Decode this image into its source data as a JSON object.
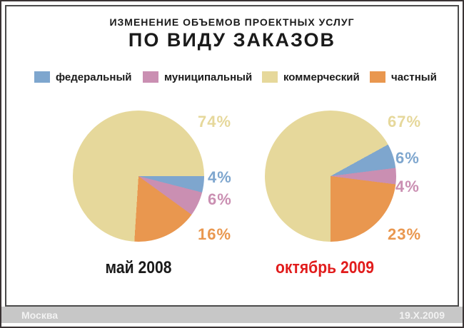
{
  "slide": {
    "subtitle": "ИЗМЕНЕНИЕ ОБЪЕМОВ ПРОЕКТНЫХ УСЛУГ",
    "title": "ПО ВИДУ ЗАКАЗОВ",
    "footer": {
      "left": "Москва",
      "right": "19.X.2009",
      "bar_color": "#c7c7c7"
    }
  },
  "chart_data": {
    "type": "pie",
    "title": "ИЗМЕНЕНИЕ ОБЪЕМОВ ПРОЕКТНЫХ УСЛУГ ПО ВИДУ ЗАКАЗОВ",
    "legend_position": "top",
    "categories": [
      "федеральный",
      "муниципальный",
      "коммерческий",
      "частный"
    ],
    "colors": [
      "#7ea6ce",
      "#ca8fb2",
      "#e6d89b",
      "#e9974f"
    ],
    "draw_order": [
      0,
      1,
      3,
      2
    ],
    "pies": [
      {
        "caption": "май 2008",
        "caption_color": "#1a1a1a",
        "rotation_deg": 90,
        "values": [
          4,
          6,
          74,
          16
        ],
        "labels": [
          "4%",
          "6%",
          "74%",
          "16%"
        ]
      },
      {
        "caption": "октябрь 2009",
        "caption_color": "#e11c1c",
        "rotation_deg": 61.2,
        "values": [
          6,
          4,
          67,
          23
        ],
        "labels": [
          "6%",
          "4%",
          "67%",
          "23%"
        ]
      }
    ]
  }
}
